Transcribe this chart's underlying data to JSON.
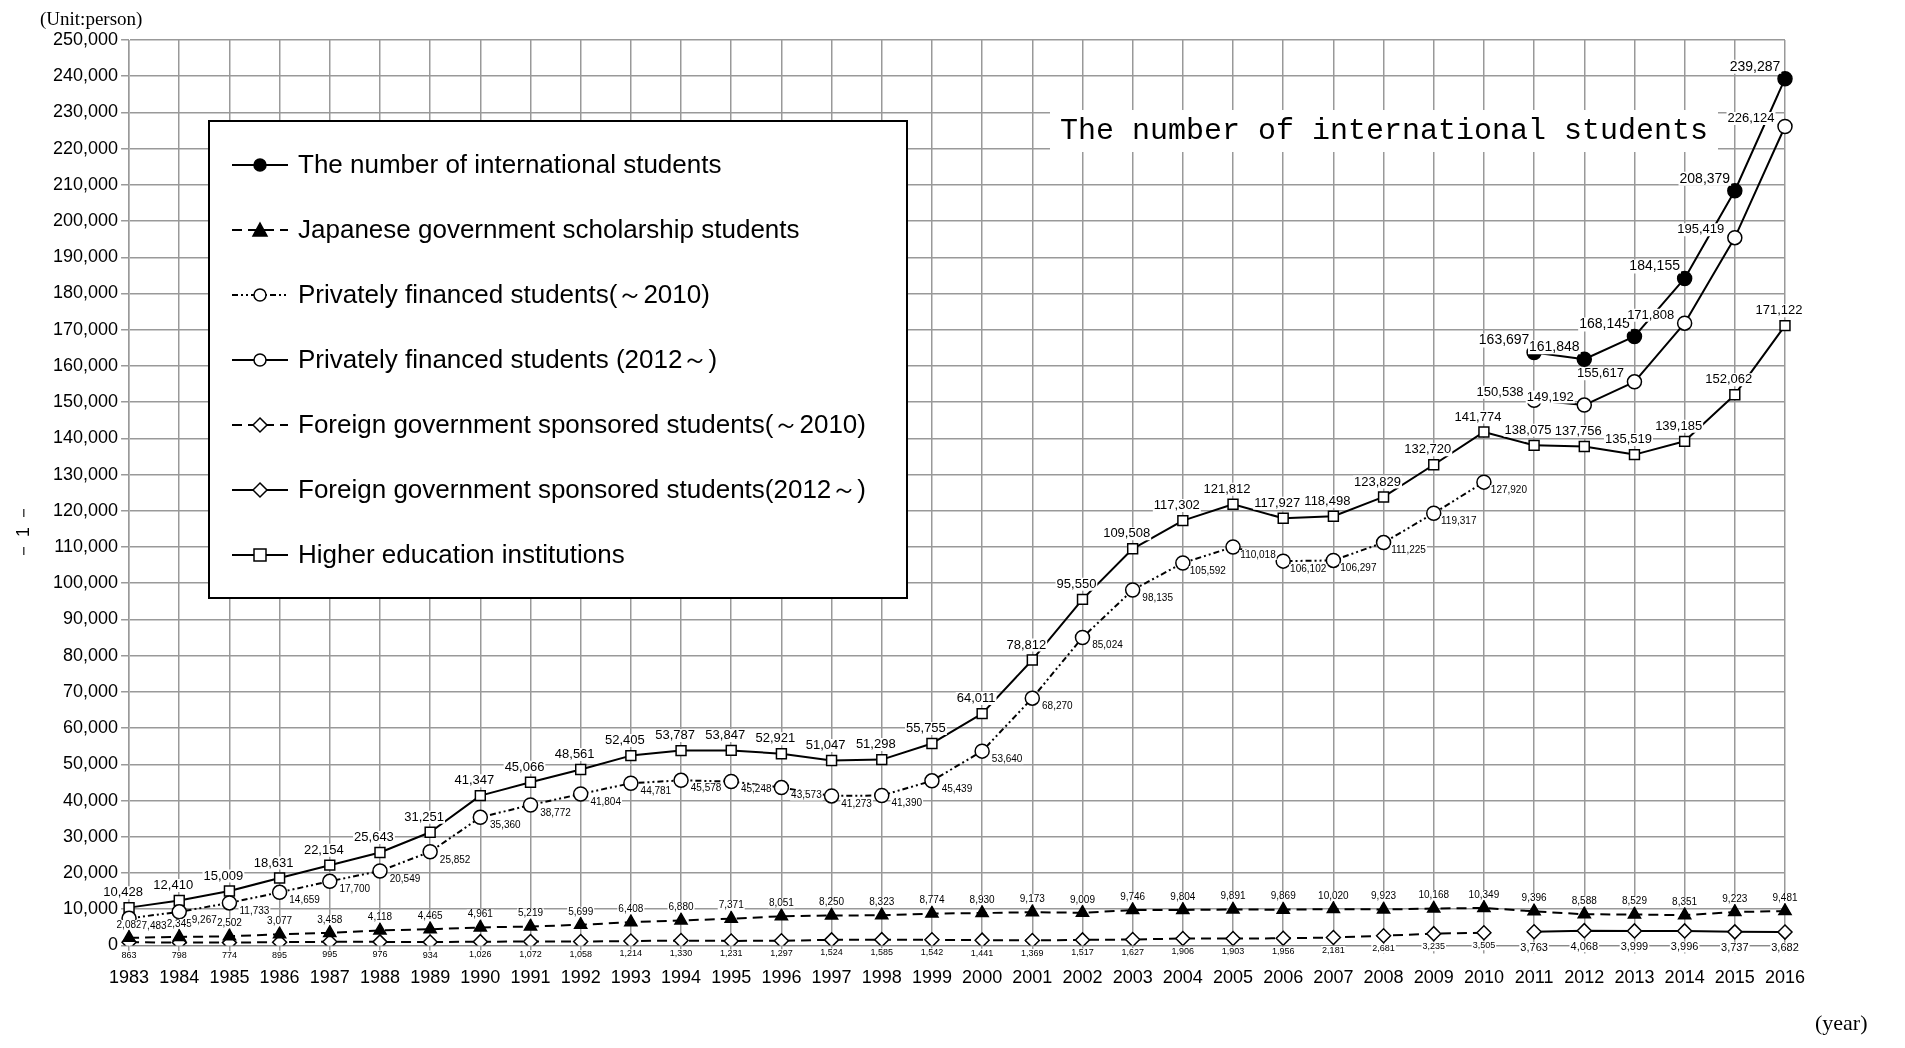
{
  "chart_data": {
    "type": "line",
    "title": "The number of international students",
    "xlabel": "(year)",
    "ylabel": "(Unit:person)",
    "annotations": [
      "－ 1 －"
    ],
    "categories": [
      "1983",
      "1984",
      "1985",
      "1986",
      "1987",
      "1988",
      "1989",
      "1990",
      "1991",
      "1992",
      "1993",
      "1994",
      "1995",
      "1996",
      "1997",
      "1998",
      "1999",
      "2000",
      "2001",
      "2002",
      "2003",
      "2004",
      "2005",
      "2006",
      "2007",
      "2008",
      "2009",
      "2010",
      "2011",
      "2012",
      "2013",
      "2014",
      "2015",
      "2016"
    ],
    "series": [
      {
        "name": "The number of international students",
        "color": "#000000",
        "marker": "circle",
        "line_style": "solid",
        "values": [
          null,
          null,
          null,
          null,
          null,
          null,
          null,
          null,
          null,
          null,
          null,
          null,
          null,
          null,
          null,
          null,
          null,
          null,
          null,
          null,
          null,
          null,
          null,
          null,
          null,
          null,
          null,
          null,
          163697,
          161848,
          168145,
          184155,
          208379,
          239287
        ],
        "value_labels": [
          null,
          null,
          null,
          null,
          null,
          null,
          null,
          null,
          null,
          null,
          null,
          null,
          null,
          null,
          null,
          null,
          null,
          null,
          null,
          null,
          null,
          null,
          null,
          null,
          null,
          null,
          null,
          null,
          "163,697",
          "161,848",
          "168,145",
          "184,155",
          "208,379",
          "239,287"
        ]
      },
      {
        "name": "Japanese government scholarship students",
        "color": "#000000",
        "marker": "triangle",
        "line_style": "dashed",
        "values": [
          2082,
          2345,
          2502,
          3077,
          3458,
          4118,
          4465,
          4961,
          5219,
          5699,
          6408,
          6880,
          7371,
          8051,
          8250,
          8323,
          8774,
          8930,
          9173,
          9009,
          9746,
          9804,
          9891,
          9869,
          10020,
          9923,
          10168,
          10349,
          9396,
          8588,
          8529,
          8351,
          9223,
          9481
        ],
        "value_labels": [
          "2,082",
          "2,345",
          "2,502",
          "3,077",
          "3,458",
          "4,118",
          "4,465",
          "4,961",
          "5,219",
          "5,699",
          "6,408",
          "6,880",
          "7,371",
          "8,051",
          "8,250",
          "8,323",
          "8,774",
          "8,930",
          "9,173",
          "9,009",
          "9,746",
          "9,804",
          "9,891",
          "9,869",
          "10,020",
          "9,923",
          "10,168",
          "10,349",
          "9,396",
          "8,588",
          "8,529",
          "8,351",
          "9,223",
          "9,481"
        ]
      },
      {
        "name": "Privately financed students(～2010)",
        "color": "#000000",
        "marker": "circle",
        "line_style": "dotted",
        "values": [
          7483,
          9267,
          11733,
          14659,
          17700,
          20549,
          25852,
          35360,
          38772,
          41804,
          44781,
          45578,
          45248,
          43573,
          41273,
          41390,
          45439,
          53640,
          68270,
          85024,
          98135,
          105592,
          110018,
          106102,
          106297,
          111225,
          119317,
          127920,
          null,
          null,
          null,
          null,
          null,
          null
        ],
        "value_labels": [
          "7,483",
          "9,267",
          "11,733",
          "14,659",
          "17,700",
          "20,549",
          "25,852",
          "35,360",
          "38,772",
          "41,804",
          "44,781",
          "45,578",
          "45,248",
          "43,573",
          "41,273",
          "41,390",
          "45,439",
          "53,640",
          "68,270",
          "85,024",
          "98,135",
          "105,592",
          "110,018",
          "106,102",
          "106,297",
          "111,225",
          "119,317",
          "127,920",
          null,
          null,
          null,
          null,
          null,
          null
        ]
      },
      {
        "name": "Privately financed students (2012～)",
        "color": "#000000",
        "marker": "circle",
        "line_style": "solid",
        "values": [
          null,
          null,
          null,
          null,
          null,
          null,
          null,
          null,
          null,
          null,
          null,
          null,
          null,
          null,
          null,
          null,
          null,
          null,
          null,
          null,
          null,
          null,
          null,
          null,
          null,
          null,
          null,
          null,
          150538,
          149192,
          155617,
          171808,
          195419,
          226124
        ],
        "value_labels": [
          null,
          null,
          null,
          null,
          null,
          null,
          null,
          null,
          null,
          null,
          null,
          null,
          null,
          null,
          null,
          null,
          null,
          null,
          null,
          null,
          null,
          null,
          null,
          null,
          null,
          null,
          null,
          null,
          "150,538",
          "149,192",
          "155,617",
          "171,808",
          "195,419",
          "226,124"
        ]
      },
      {
        "name": "Foreign government sponsored students(～2010)",
        "color": "#000000",
        "marker": "diamond",
        "line_style": "dashed",
        "values": [
          863,
          798,
          774,
          895,
          995,
          976,
          934,
          1026,
          1072,
          1058,
          1214,
          1330,
          1231,
          1297,
          1524,
          1585,
          1542,
          1441,
          1369,
          1517,
          1627,
          1906,
          1903,
          1956,
          2181,
          2681,
          3235,
          3505,
          null,
          null,
          null,
          null,
          null,
          null
        ],
        "value_labels": [
          "863",
          "798",
          "774",
          "895",
          "995",
          "976",
          "934",
          "1,026",
          "1,072",
          "1,058",
          "1,214",
          "1,330",
          "1,231",
          "1,297",
          "1,524",
          "1,585",
          "1,542",
          "1,441",
          "1,369",
          "1,517",
          "1,627",
          "1,906",
          "1,903",
          "1,956",
          "2,181",
          "2,681",
          "3,235",
          "3,505",
          null,
          null,
          null,
          null,
          null,
          null
        ]
      },
      {
        "name": "Foreign government sponsored students(2012～)",
        "color": "#000000",
        "marker": "diamond",
        "line_style": "solid",
        "values": [
          null,
          null,
          null,
          null,
          null,
          null,
          null,
          null,
          null,
          null,
          null,
          null,
          null,
          null,
          null,
          null,
          null,
          null,
          null,
          null,
          null,
          null,
          null,
          null,
          null,
          null,
          null,
          null,
          3763,
          4068,
          3999,
          3996,
          3737,
          3682
        ],
        "value_labels": [
          null,
          null,
          null,
          null,
          null,
          null,
          null,
          null,
          null,
          null,
          null,
          null,
          null,
          null,
          null,
          null,
          null,
          null,
          null,
          null,
          null,
          null,
          null,
          null,
          null,
          null,
          null,
          null,
          "3,763",
          "4,068",
          "3,999",
          "3,996",
          "3,737",
          "3,682"
        ]
      },
      {
        "name": "Higher education institutions",
        "color": "#000000",
        "marker": "square",
        "line_style": "solid",
        "values": [
          10428,
          12410,
          15009,
          18631,
          22154,
          25643,
          31251,
          41347,
          45066,
          48561,
          52405,
          53787,
          53847,
          52921,
          51047,
          51298,
          55755,
          64011,
          78812,
          95550,
          109508,
          117302,
          121812,
          117927,
          118498,
          123829,
          132720,
          141774,
          138075,
          137756,
          135519,
          139185,
          152062,
          171122
        ],
        "value_labels": [
          "10,428",
          "12,410",
          "15,009",
          "18,631",
          "22,154",
          "25,643",
          "31,251",
          "41,347",
          "45,066",
          "48,561",
          "52,405",
          "53,787",
          "53,847",
          "52,921",
          "51,047",
          "51,298",
          "55,755",
          "64,011",
          "78,812",
          "95,550",
          "109,508",
          "117,302",
          "121,812",
          "117,927",
          "118,498",
          "123,829",
          "132,720",
          "141,774",
          "138,075",
          "137,756",
          "135,519",
          "139,185",
          "152,062",
          "171,122"
        ]
      }
    ],
    "ylim": [
      0,
      250000
    ],
    "yticks": [
      0,
      {
        "value": 10000,
        "label": "10,000"
      },
      {
        "value": 20000,
        "label": "20,000"
      },
      {
        "value": 30000,
        "label": "30,000"
      },
      {
        "value": 40000,
        "label": "40,000"
      },
      {
        "value": 50000,
        "label": "50,000"
      },
      {
        "value": 60000,
        "label": "60,000"
      },
      {
        "value": 70000,
        "label": "70,000"
      },
      {
        "value": 80000,
        "label": "80,000"
      },
      {
        "value": 90000,
        "label": "90,000"
      },
      {
        "value": 100000,
        "label": "100,000"
      },
      {
        "value": 110000,
        "label": "110,000"
      },
      {
        "value": 120000,
        "label": "120,000"
      },
      {
        "value": 130000,
        "label": "130,000"
      },
      {
        "value": 140000,
        "label": "140,000"
      },
      {
        "value": 150000,
        "label": "150,000"
      },
      {
        "value": 160000,
        "label": "160,000"
      },
      {
        "value": 170000,
        "label": "170,000"
      },
      {
        "value": 180000,
        "label": "180,000"
      },
      {
        "value": 190000,
        "label": "190,000"
      },
      {
        "value": 200000,
        "label": "200,000"
      },
      {
        "value": 210000,
        "label": "210,000"
      },
      {
        "value": 220000,
        "label": "220,000"
      },
      {
        "value": 230000,
        "label": "230,000"
      },
      {
        "value": 240000,
        "label": "240,000"
      },
      {
        "value": 250000,
        "label": "250,000"
      }
    ],
    "grid": true,
    "legend": "top left"
  }
}
